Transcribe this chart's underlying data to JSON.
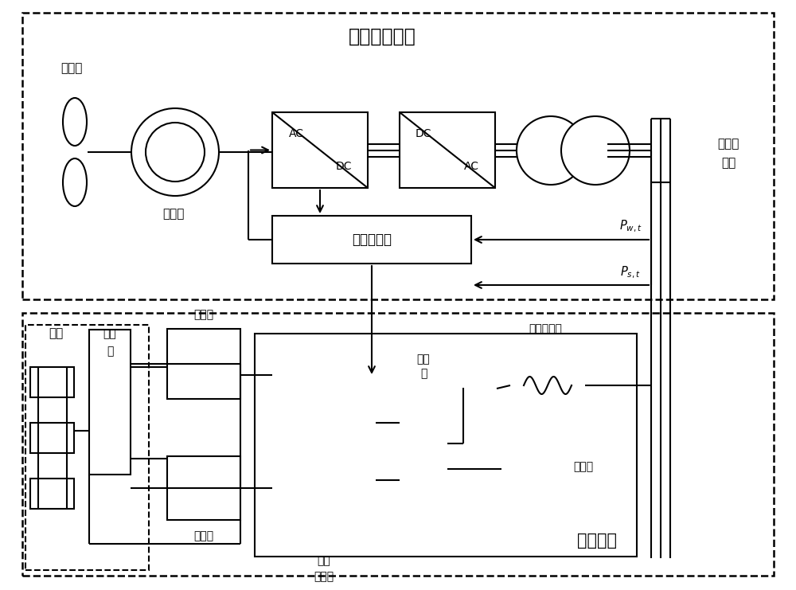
{
  "title": "风力发电模块",
  "solar_label": "光热电站",
  "solar_field_label": "光场",
  "wind_turbine_label": "风力机",
  "generator_label": "发电机",
  "output_label1": "输出至",
  "output_label2": "电网",
  "power_controller_label": "功率控制器",
  "heat_exchanger_label": "换热\n器",
  "hot_salt_tank_label": "热盐罐",
  "cold_salt_tank_label": "冷盐罐",
  "steam_generator_label1": "蒸汽",
  "steam_generator_label2": "发生器",
  "condenser_label": "冷凝\n器",
  "turbine_generator_label": "汽轮发电机",
  "cooling_tower_label": "冷却塔",
  "bg_color": "#ffffff",
  "line_color": "#000000",
  "lw": 1.5,
  "fig_width": 10.0,
  "fig_height": 7.41,
  "dpi": 100
}
